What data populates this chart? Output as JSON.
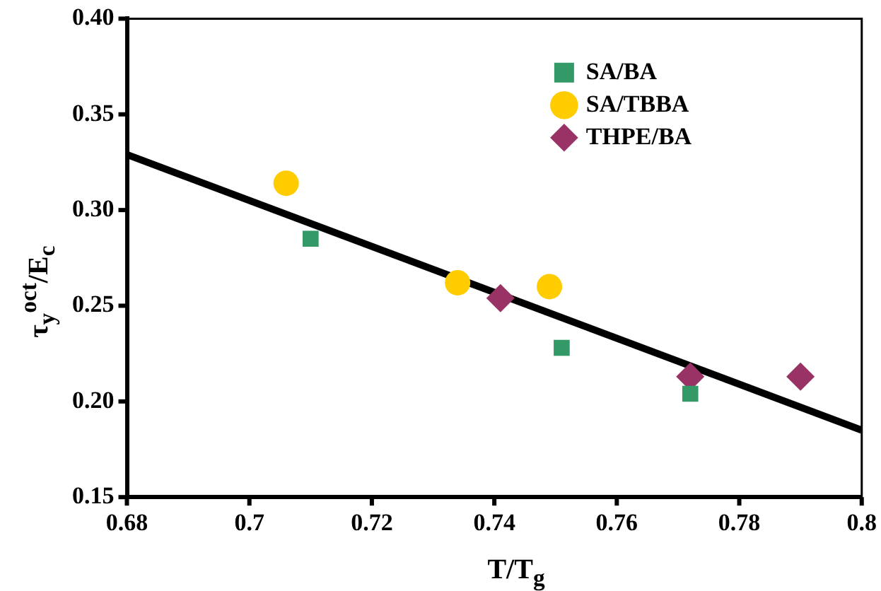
{
  "chart_data": {
    "type": "scatter",
    "xlabel": "T/T$_{g}$",
    "ylabel": "τ$_{y}$$^{oct}$/E$_{c}$",
    "xlim": [
      0.68,
      0.8
    ],
    "xticks": [
      0.68,
      {
        "value": 0.7,
        "label": "0.7"
      },
      0.72,
      0.74,
      0.76,
      0.78,
      {
        "value": 0.8,
        "label": "0.8"
      }
    ],
    "ylim": [
      0.15,
      0.4
    ],
    "yticks": [
      {
        "value": 0.15,
        "label": "0.15"
      },
      {
        "value": 0.2,
        "label": "0.20"
      },
      {
        "value": 0.25,
        "label": "0.25"
      },
      {
        "value": 0.3,
        "label": "0.30"
      },
      {
        "value": 0.35,
        "label": "0.35"
      },
      {
        "value": 0.4,
        "label": "0.40"
      }
    ],
    "grid": false,
    "legend": "top right",
    "series": [
      {
        "name": "SA/BA",
        "color": "#339966",
        "marker": "square",
        "x": [
          0.71,
          0.751,
          0.772
        ],
        "values": [
          0.285,
          0.228,
          0.204
        ]
      },
      {
        "name": "SA/TBBA",
        "color": "#ffcc00",
        "marker": "circle",
        "x": [
          0.706,
          0.734,
          0.749
        ],
        "values": [
          0.314,
          0.262,
          0.26
        ]
      },
      {
        "name": "THPE/BA",
        "color": "#993366",
        "marker": "diamond",
        "x": [
          0.741,
          0.772,
          0.79
        ],
        "values": [
          0.254,
          0.213,
          0.213
        ]
      },
      {
        "type": "line",
        "color": "#000000",
        "marker": "none",
        "x": [
          0.68,
          0.8
        ],
        "values": [
          0.329,
          0.185
        ]
      }
    ]
  }
}
